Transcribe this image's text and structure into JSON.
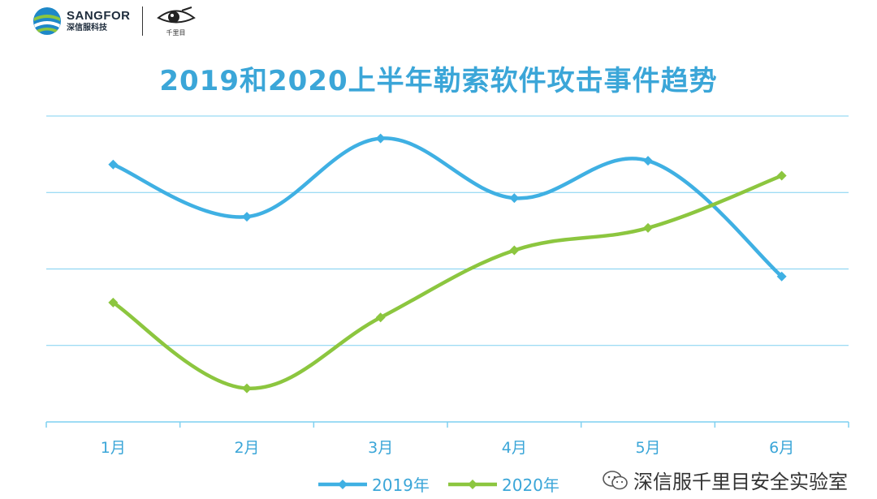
{
  "header": {
    "brand_name": "SANGFOR",
    "brand_sub": "深信服科技",
    "partner_sub": "千里目"
  },
  "watermark": {
    "text": "深信服千里目安全实验室"
  },
  "colors": {
    "series_2019": "#3fb0e3",
    "series_2020": "#8cc63f",
    "grid": "#7fd0f0",
    "title": "#3ba6d8",
    "axis_text": "#3ba6d8"
  },
  "chart_data": {
    "type": "line",
    "title": "2019和2020上半年勒索软件攻击事件趋势",
    "categories": [
      "1月",
      "2月",
      "3月",
      "4月",
      "5月",
      "6月"
    ],
    "series": [
      {
        "name": "2019年",
        "values": [
          3.45,
          2.75,
          3.8,
          3.0,
          3.5,
          1.95
        ]
      },
      {
        "name": "2020年",
        "values": [
          1.6,
          0.45,
          1.4,
          2.3,
          2.6,
          3.3
        ]
      }
    ],
    "ylim": [
      0,
      4.1
    ],
    "yticks_shown": false,
    "grid": true,
    "legend": "bottom-center",
    "smooth": true
  }
}
